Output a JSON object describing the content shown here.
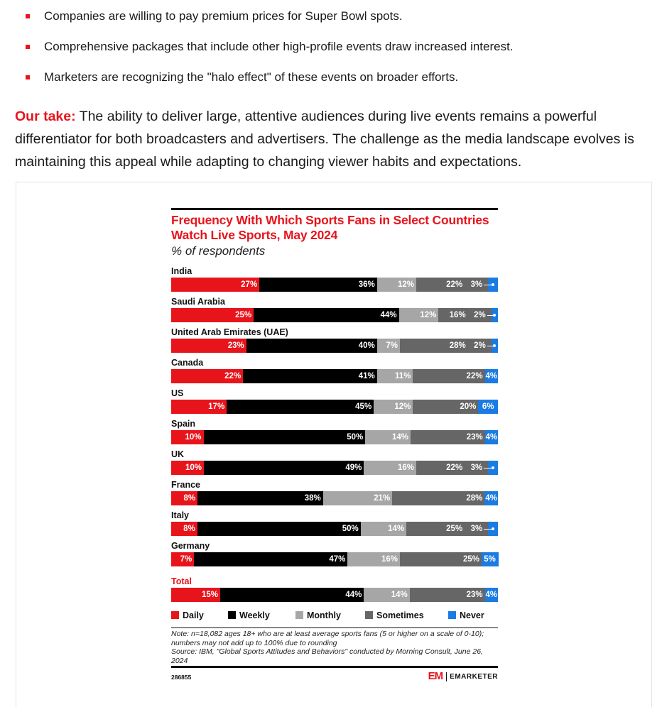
{
  "bullets": [
    "Companies are willing to pay premium prices for Super Bowl spots.",
    "Comprehensive packages that include other high-profile events draw increased interest.",
    "Marketers are recognizing the \"halo effect\" of these events on broader efforts."
  ],
  "our_take": {
    "lead": "Our take:",
    "text": " The ability to deliver large, attentive audiences during live events remains a powerful differentiator for both broadcasters and advertisers. The challenge as the media landscape evolves is maintaining this appeal while adapting to changing viewer habits and expectations."
  },
  "colors": {
    "accent_red": "#e8141c",
    "daily": "#e8141c",
    "weekly": "#000000",
    "monthly": "#a6a6a6",
    "sometimes": "#666666",
    "never": "#1a7be3"
  },
  "chart_data": {
    "type": "bar",
    "orientation": "horizontal-stacked",
    "title": "Frequency With Which Sports Fans in Select Countries Watch Live Sports, May 2024",
    "subtitle": "% of respondents",
    "unit": "%",
    "categories": [
      "India",
      "Saudi Arabia",
      "United Arab Emirates (UAE)",
      "Canada",
      "US",
      "Spain",
      "UK",
      "France",
      "Italy",
      "Germany",
      "Total"
    ],
    "series": [
      {
        "name": "Daily",
        "values": [
          27,
          25,
          23,
          22,
          17,
          10,
          10,
          8,
          8,
          7,
          15
        ]
      },
      {
        "name": "Weekly",
        "values": [
          36,
          44,
          40,
          41,
          45,
          50,
          49,
          38,
          50,
          47,
          44
        ]
      },
      {
        "name": "Monthly",
        "values": [
          12,
          12,
          7,
          11,
          12,
          14,
          16,
          21,
          14,
          16,
          14
        ]
      },
      {
        "name": "Sometimes",
        "values": [
          22,
          16,
          28,
          22,
          20,
          23,
          22,
          28,
          25,
          25,
          23
        ]
      },
      {
        "name": "Never",
        "values": [
          3,
          2,
          2,
          4,
          6,
          4,
          3,
          4,
          3,
          5,
          4
        ]
      }
    ],
    "value_labels_format": "{v}%",
    "xlim": [
      0,
      100
    ],
    "legend_position": "bottom",
    "note": "Note: n=18,082 ages 18+ who are at least average sports fans (5 or higher on a scale of 0-10); numbers may not add up to 100% due to rounding",
    "source": "Source: IBM, \"Global Sports Attitudes and Behaviors\" conducted by Morning Consult, June 26, 2024",
    "chart_id": "286855",
    "brand": {
      "mark": "EM",
      "name": "EMARKETER"
    }
  }
}
